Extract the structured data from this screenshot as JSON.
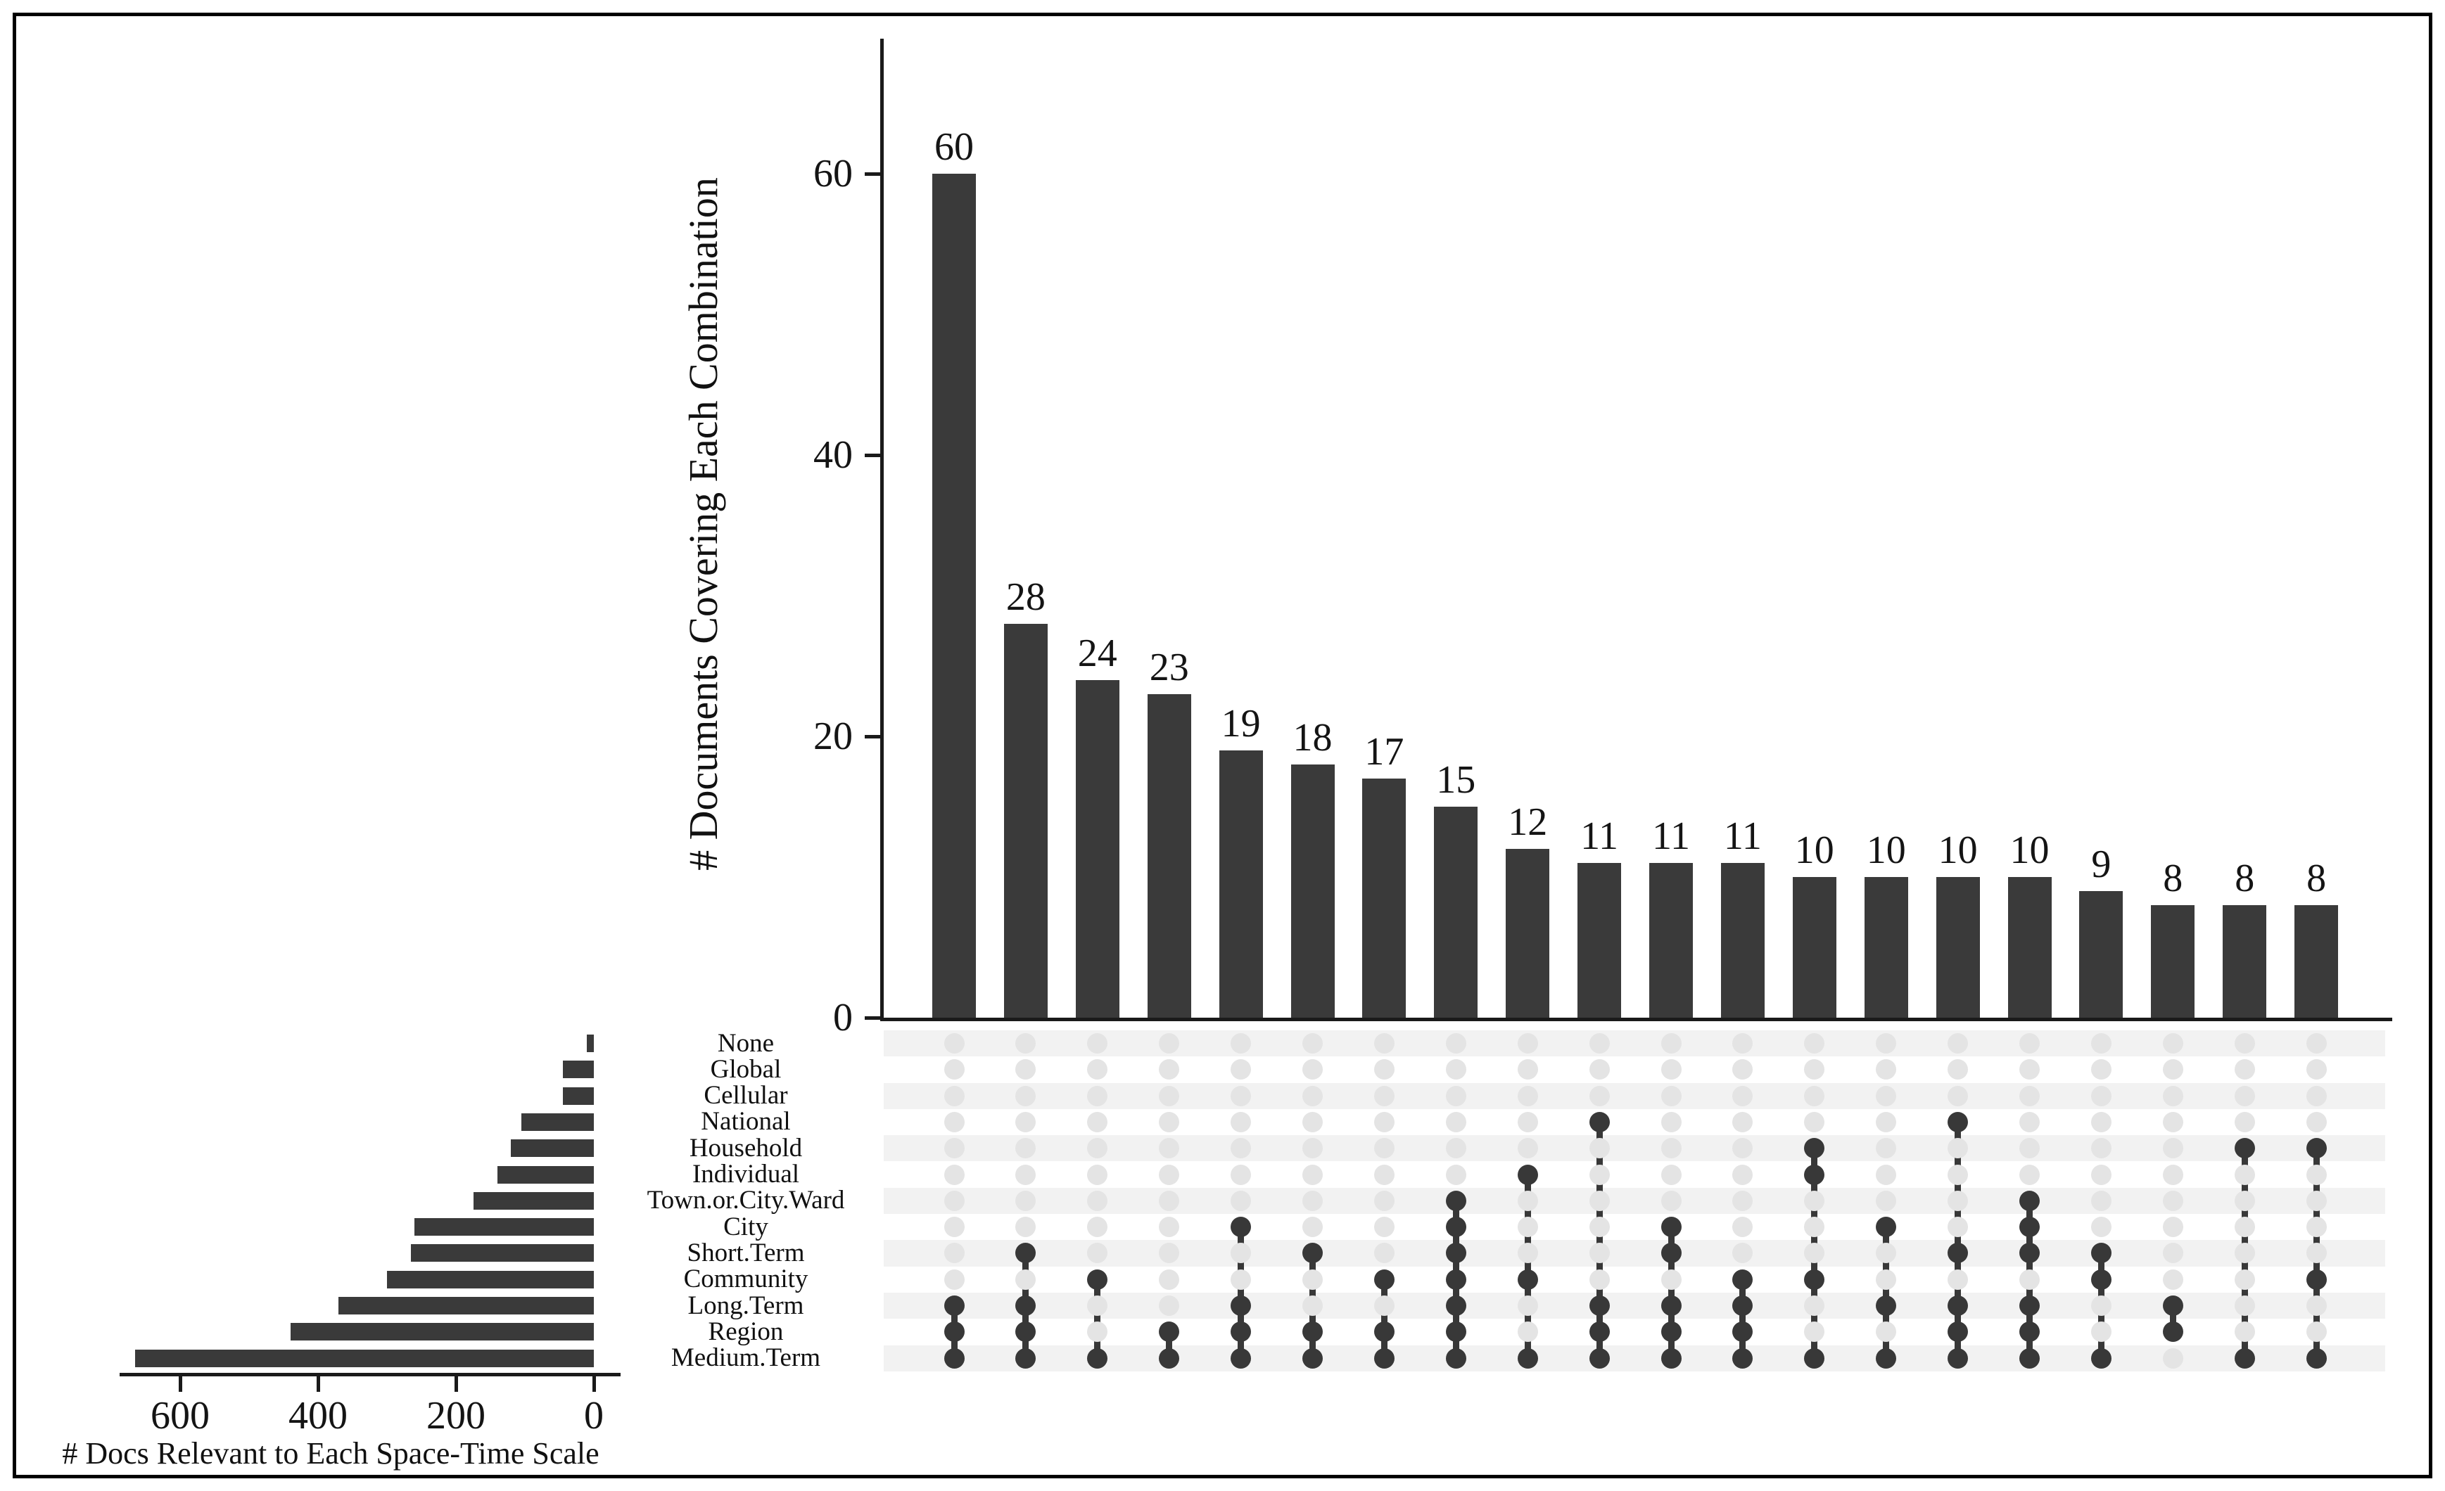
{
  "chart_data": {
    "type": "upset",
    "intersection_bars": {
      "ylabel": "# Documents Covering Each Combination",
      "yticks": [
        0,
        20,
        40,
        60
      ],
      "ylim": [
        0,
        68
      ],
      "bar_color": "#3a3a3a",
      "values": [
        60,
        28,
        24,
        23,
        19,
        18,
        17,
        15,
        12,
        11,
        11,
        11,
        10,
        10,
        10,
        10,
        9,
        8,
        8,
        8
      ],
      "memberships": [
        [
          "Long.Term",
          "Region",
          "Medium.Term"
        ],
        [
          "Short.Term",
          "Long.Term",
          "Region",
          "Medium.Term"
        ],
        [
          "Community",
          "Medium.Term"
        ],
        [
          "Region",
          "Medium.Term"
        ],
        [
          "City",
          "Long.Term",
          "Region",
          "Medium.Term"
        ],
        [
          "Short.Term",
          "Region",
          "Medium.Term"
        ],
        [
          "Community",
          "Region",
          "Medium.Term"
        ],
        [
          "Town.or.City.Ward",
          "City",
          "Short.Term",
          "Community",
          "Long.Term",
          "Region",
          "Medium.Term"
        ],
        [
          "Individual",
          "Community",
          "Medium.Term"
        ],
        [
          "National",
          "Long.Term",
          "Region",
          "Medium.Term"
        ],
        [
          "City",
          "Short.Term",
          "Long.Term",
          "Region",
          "Medium.Term"
        ],
        [
          "Community",
          "Long.Term",
          "Region",
          "Medium.Term"
        ],
        [
          "Household",
          "Individual",
          "Community",
          "Medium.Term"
        ],
        [
          "City",
          "Long.Term",
          "Medium.Term"
        ],
        [
          "National",
          "Short.Term",
          "Long.Term",
          "Region",
          "Medium.Term"
        ],
        [
          "Town.or.City.Ward",
          "City",
          "Short.Term",
          "Long.Term",
          "Region",
          "Medium.Term"
        ],
        [
          "Short.Term",
          "Community",
          "Medium.Term"
        ],
        [
          "Long.Term",
          "Region"
        ],
        [
          "Household",
          "Medium.Term"
        ],
        [
          "Household",
          "Community",
          "Medium.Term"
        ]
      ]
    },
    "matrix": {
      "dot_active_color": "#383838",
      "dot_inactive_color": "#e4e4e4",
      "stripe_color": "#f2f2f2"
    },
    "sets": {
      "xlabel": "# Docs Relevant to Each Space-Time Scale",
      "xticks": [
        600,
        400,
        200,
        0
      ],
      "xlim": [
        690,
        0
      ],
      "bar_color": "#3a3a3a",
      "labels": [
        "None",
        "Global",
        "Cellular",
        "National",
        "Household",
        "Individual",
        "Town.or.City.Ward",
        "City",
        "Short.Term",
        "Community",
        "Long.Term",
        "Region",
        "Medium.Term"
      ],
      "sizes": [
        10,
        45,
        45,
        105,
        120,
        140,
        175,
        260,
        265,
        300,
        370,
        440,
        665
      ]
    }
  }
}
